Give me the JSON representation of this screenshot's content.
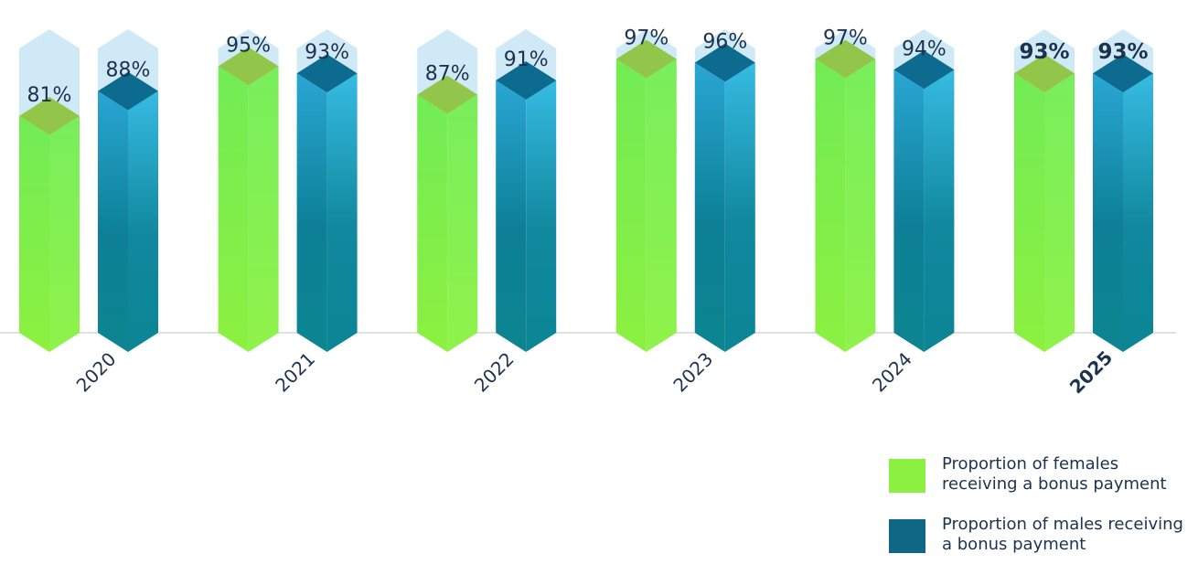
{
  "chart_data": {
    "type": "bar",
    "categories": [
      "2020",
      "2021",
      "2022",
      "2023",
      "2024",
      "2025"
    ],
    "series": [
      {
        "name": "Proportion of females receiving a bonus payment",
        "values": [
          81,
          95,
          87,
          97,
          97,
          93
        ],
        "color": "#7be85a"
      },
      {
        "name": "Proportion of males receiving a bonus payment",
        "values": [
          88,
          93,
          91,
          96,
          94,
          93
        ],
        "color": "#0f6f8a"
      }
    ],
    "data_labels": [
      [
        "81%",
        "95%",
        "87%",
        "97%",
        "97%",
        "93%"
      ],
      [
        "88%",
        "93%",
        "91%",
        "96%",
        "94%",
        "93%"
      ]
    ],
    "highlighted_category": "2025",
    "ylim": [
      0,
      100
    ],
    "grid": false,
    "legend_position": "bottom-right"
  },
  "legend": {
    "female_label": "Proportion of females receiving a bonus payment",
    "male_label": "Proportion of males receiving a bonus payment",
    "female_color": "#8cf040",
    "male_color": "#0e6785"
  }
}
